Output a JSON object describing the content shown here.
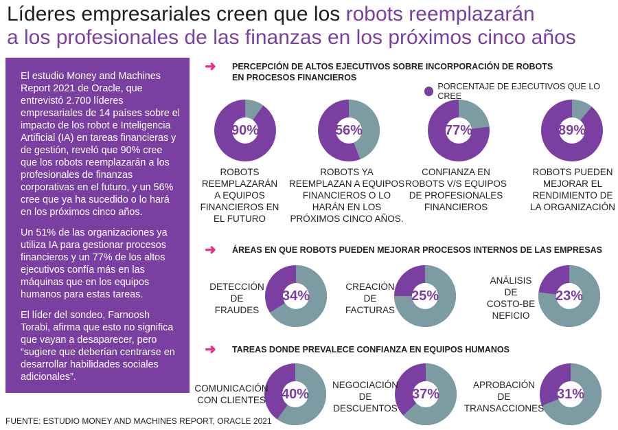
{
  "title": {
    "line1_plain": "Líderes empresariales creen que los ",
    "line1_highlight": "robots reemplazarán",
    "line2_highlight": "a los profesionales de las finanzas en los próximos cinco años"
  },
  "sidebar": {
    "p1": "El estudio Money and Machines Report 2021 de Oracle, que entrevistó 2.700 líderes empresariales de 14 países sobre el impacto de los robot e Inteligencia Artificial (IA) en tareas financieras y de gestión, reveló que 90% cree que los robots reemplazarán a los profesionales de finanzas corporativas en el futuro, y un 56% cree que ya ha sucedido o lo hará en los próximos cinco años.",
    "p2": "Un 51% de las organizaciones ya utiliza IA para gestionar procesos financieros y un 77% de los altos ejecutivos confía más en las máquinas que en los equipos humanos para estas tareas.",
    "p3": "El líder del sondeo, Farnoosh Torabi, afirma que esto no significa que vayan a desaparecer, pero “sugiere que deberían centrarse en desarrollar habilidades sociales adicionales”."
  },
  "source": "FUENTE: ESTUDIO MONEY AND MACHINES REPORT, ORACLE 2021",
  "arrow_glyph": "➜",
  "sections": {
    "s1_line1": "PERCEPCIÓN DE ALTOS EJECUTIVOS SOBRE INCORPORACIÓN DE ROBOTS",
    "s1_line2": "EN PROCESOS FINANCIEROS",
    "s2": "ÁREAS EN QUE ROBOTS PUEDEN MEJORAR PROCESOS INTERNOS DE LAS EMPRESAS",
    "s3": "TAREAS DONDE PREVALECE CONFIANZA EN EQUIPOS HUMANOS"
  },
  "legend": "PORCENTAJE DE EJECUTIVOS QUE LO CREE",
  "colors": {
    "accent": "#7a3fa0",
    "rest": "#7d9ba3",
    "arrow": "#e8308c"
  },
  "chart_data": [
    {
      "type": "pie",
      "title": "PERCEPCIÓN DE ALTOS EJECUTIVOS SOBRE INCORPORACIÓN DE ROBOTS EN PROCESOS FINANCIEROS",
      "categories": [
        "ROBOTS REEMPLAZARÁN A EQUIPOS FINANCIEROS EN EL FUTURO",
        "ROBOTS YA REEMPLAZAN A EQUIPOS FINANCIEROS O LO HARÁN EN LOS PRÓXIMOS CINCO AÑOS.",
        "CONFIANZA EN ROBOTS V/S EQUIPOS DE PROFESIONALES FINANCIEROS",
        "ROBOTS PUEDEN MEJORAR EL RENDIMIENTO DE LA ORGANIZACIÓN"
      ],
      "values": [
        90,
        56,
        77,
        89
      ],
      "value_labels": [
        "90%",
        "56%",
        "77%",
        "89%"
      ],
      "label_lines": [
        [
          "ROBOTS",
          "REEMPLAZARÁN",
          "A EQUIPOS",
          "FINANCIEROS EN",
          "EL FUTURO"
        ],
        [
          "ROBOTS YA",
          "REEMPLAZAN A EQUIPOS",
          "FINANCIEROS O LO",
          "HARÁN EN LOS",
          "PRÓXIMOS CINCO AÑOS."
        ],
        [
          "CONFIANZA EN",
          "ROBOTS V/S EQUIPOS",
          "DE PROFESIONALES",
          "FINANCIEROS"
        ],
        [
          "ROBOTS PUEDEN",
          "MEJORAR EL",
          "RENDIMIENTO DE",
          "LA ORGANIZACIÓN"
        ]
      ]
    },
    {
      "type": "pie",
      "title": "ÁREAS EN QUE ROBOTS PUEDEN MEJORAR PROCESOS INTERNOS DE LAS EMPRESAS",
      "categories": [
        "DETECCIÓN DE FRAUDES",
        "CREACIÓN DE FACTURAS",
        "ANÁLISIS DE COSTO-BENEFICIO"
      ],
      "values": [
        34,
        25,
        23
      ],
      "value_labels": [
        "34%",
        "25%",
        "23%"
      ],
      "label_lines": [
        [
          "DETECCIÓN",
          "DE",
          "FRAUDES"
        ],
        [
          "CREACIÓN",
          "DE",
          "FACTURAS"
        ],
        [
          "ANÁLISIS",
          "DE",
          "COSTO-BE",
          "NEFICIO"
        ]
      ]
    },
    {
      "type": "pie",
      "title": "TAREAS DONDE PREVALECE CONFIANZA EN EQUIPOS HUMANOS",
      "categories": [
        "COMUNICACIÓN CON CLIENTES",
        "NEGOCIACIÓN DE DESCUENTOS",
        "APROBACIÓN DE TRANSACCIONES"
      ],
      "values": [
        40,
        37,
        31
      ],
      "value_labels": [
        "40%",
        "37%",
        "31%"
      ],
      "label_lines": [
        [
          "COMUNICACIÓN",
          "CON CLIENTES"
        ],
        [
          "NEGOCIACIÓN",
          "DE",
          "DESCUENTOS"
        ],
        [
          "APROBACIÓN",
          "DE",
          "TRANSACCIONES"
        ]
      ]
    }
  ]
}
